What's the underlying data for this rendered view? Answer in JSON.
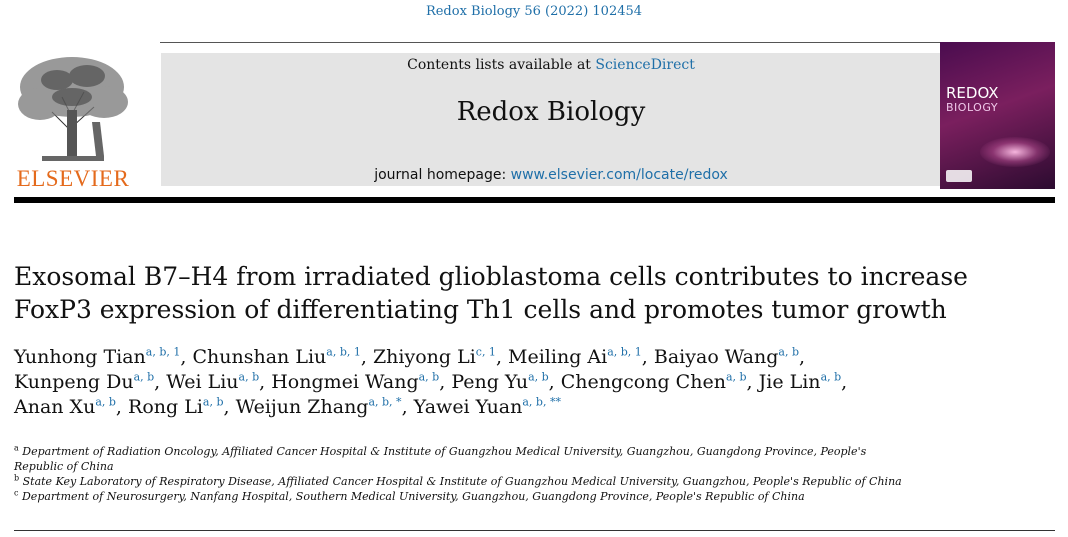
{
  "header": {
    "citation": "Redox Biology 56 (2022) 102454",
    "contents_prefix": "Contents lists available at ",
    "contents_link": "ScienceDirect",
    "journal_title": "Redox Biology",
    "homepage_prefix": "journal homepage: ",
    "homepage_link": "www.elsevier.com/locate/redox",
    "publisher": "ELSEVIER",
    "cover_title": "REDOX",
    "cover_subtitle": "BIOLOGY"
  },
  "article": {
    "title_line1": "Exosomal B7–H4 from irradiated glioblastoma cells contributes to increase",
    "title_line2": "FoxP3 expression of differentiating Th1 cells and promotes tumor growth",
    "authors": [
      {
        "name": "Yunhong Tian",
        "sup": "a, b, 1",
        "sep": ", "
      },
      {
        "name": "Chunshan Liu",
        "sup": "a, b, 1",
        "sep": ", "
      },
      {
        "name": "Zhiyong Li",
        "sup": "c, 1",
        "sep": ", "
      },
      {
        "name": "Meiling Ai",
        "sup": "a, b, 1",
        "sep": ", "
      },
      {
        "name": "Baiyao Wang",
        "sup": "a, b",
        "sep": ","
      },
      {
        "name": "Kunpeng Du",
        "sup": "a, b",
        "sep": ", "
      },
      {
        "name": "Wei Liu",
        "sup": "a, b",
        "sep": ", "
      },
      {
        "name": "Hongmei Wang",
        "sup": "a, b",
        "sep": ", "
      },
      {
        "name": "Peng Yu",
        "sup": "a, b",
        "sep": ", "
      },
      {
        "name": "Chengcong Chen",
        "sup": "a, b",
        "sep": ", "
      },
      {
        "name": "Jie Lin",
        "sup": "a, b",
        "sep": ","
      },
      {
        "name": "Anan Xu",
        "sup": "a, b",
        "sep": ", "
      },
      {
        "name": "Rong Li",
        "sup": "a, b",
        "sep": ", "
      },
      {
        "name": "Weijun Zhang",
        "sup": "a, b, *",
        "sep": ", "
      },
      {
        "name": "Yawei Yuan",
        "sup": "a, b, **",
        "sep": ""
      }
    ],
    "affiliations": [
      {
        "label": "a",
        "text": "Department of Radiation Oncology, Affiliated Cancer Hospital & Institute of Guangzhou Medical University, Guangzhou, Guangdong Province, People's Republic of China"
      },
      {
        "label": "b",
        "text": "State Key Laboratory of Respiratory Disease, Affiliated Cancer Hospital & Institute of Guangzhou Medical University, Guangzhou, People's Republic of China"
      },
      {
        "label": "c",
        "text": "Department of Neurosurgery, Nanfang Hospital, Southern Medical University, Guangzhou, Guangdong Province, People's Republic of China"
      }
    ]
  }
}
